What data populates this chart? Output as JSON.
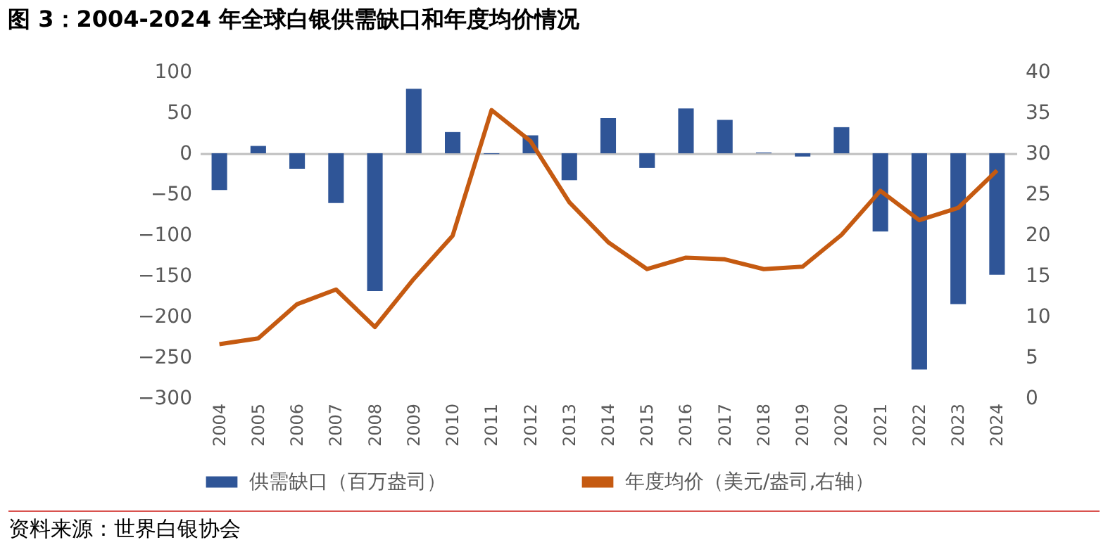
{
  "chart_data": {
    "type": "bar",
    "title": "图 3：2004-2024 年全球白银供需缺口和年度均价情况",
    "categories": [
      "2004",
      "2005",
      "2006",
      "2007",
      "2008",
      "2009",
      "2010",
      "2011",
      "2012",
      "2013",
      "2014",
      "2015",
      "2016",
      "2017",
      "2018",
      "2019",
      "2020",
      "2021",
      "2022",
      "2023",
      "2024"
    ],
    "series": [
      {
        "name": "供需缺口（百万盎司）",
        "color": "#2f5597",
        "values": [
          -45,
          9,
          -19,
          -61,
          -169,
          79,
          26,
          -1,
          22,
          -33,
          43,
          -18,
          55,
          41,
          1,
          -4,
          32,
          -96,
          -265,
          -185,
          -149
        ]
      },
      {
        "name": "年度均价（美元/盎司,右轴）",
        "type": "line",
        "axis": "y2",
        "color": "#c55a11",
        "values": [
          6.6,
          7.3,
          11.5,
          13.3,
          8.7,
          14.6,
          19.9,
          35.3,
          31.5,
          24.0,
          19.1,
          15.8,
          17.2,
          17.0,
          15.8,
          16.1,
          20.0,
          25.4,
          21.8,
          23.3,
          27.9
        ]
      }
    ],
    "ylim": [
      -300,
      100
    ],
    "yticks": [
      -300,
      -250,
      -200,
      -150,
      -100,
      -50,
      0,
      50,
      100
    ],
    "y2lim": [
      0,
      40
    ],
    "y2ticks": [
      0,
      5,
      10,
      15,
      20,
      25,
      30,
      35,
      40
    ],
    "legend": "bottom",
    "annotations": [
      "资料来源：世界白银协会"
    ]
  }
}
